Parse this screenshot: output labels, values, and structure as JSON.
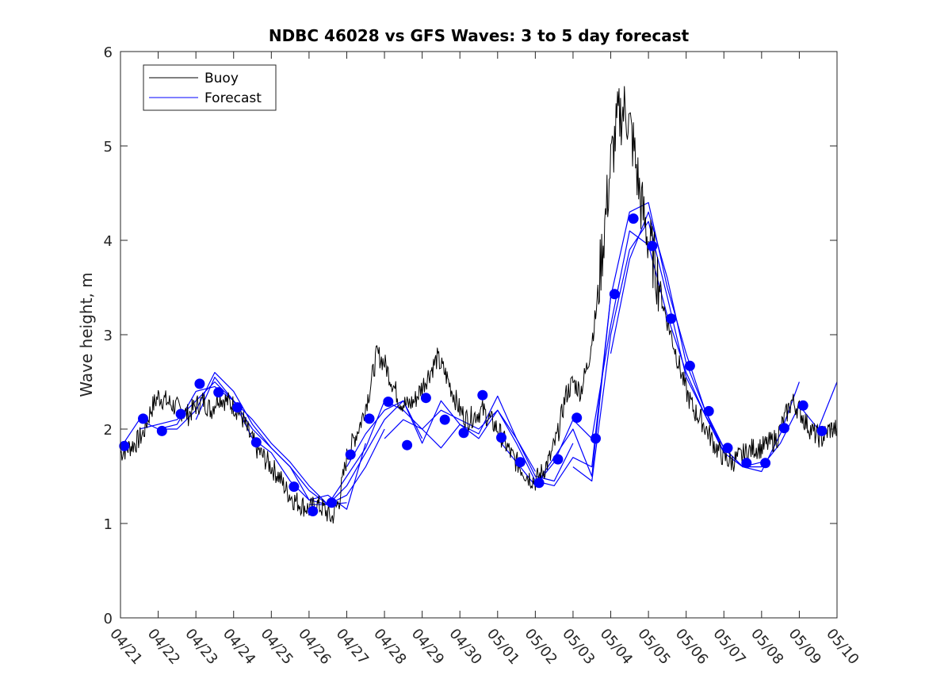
{
  "chart_data": {
    "type": "line",
    "title": "NDBC 46028 vs GFS Waves: 3 to 5 day forecast",
    "xlabel": "",
    "ylabel": "Wave height, m",
    "xlim": [
      0,
      19
    ],
    "ylim": [
      0,
      6
    ],
    "x_ticks": [
      {
        "day": 0,
        "label": "04/21"
      },
      {
        "day": 1,
        "label": "04/22"
      },
      {
        "day": 2,
        "label": "04/23"
      },
      {
        "day": 3,
        "label": "04/24"
      },
      {
        "day": 4,
        "label": "04/25"
      },
      {
        "day": 5,
        "label": "04/26"
      },
      {
        "day": 6,
        "label": "04/27"
      },
      {
        "day": 7,
        "label": "04/28"
      },
      {
        "day": 8,
        "label": "04/29"
      },
      {
        "day": 9,
        "label": "04/30"
      },
      {
        "day": 10,
        "label": "05/01"
      },
      {
        "day": 11,
        "label": "05/02"
      },
      {
        "day": 12,
        "label": "05/03"
      },
      {
        "day": 13,
        "label": "05/04"
      },
      {
        "day": 14,
        "label": "05/05"
      },
      {
        "day": 15,
        "label": "05/06"
      },
      {
        "day": 16,
        "label": "05/07"
      },
      {
        "day": 17,
        "label": "05/08"
      },
      {
        "day": 18,
        "label": "05/09"
      },
      {
        "day": 19,
        "label": "05/10"
      }
    ],
    "y_ticks": [
      0,
      1,
      2,
      3,
      4,
      5,
      6
    ],
    "legend": {
      "placement": "top-left",
      "entries": [
        {
          "label": "Buoy",
          "color": "#000000"
        },
        {
          "label": "Forecast",
          "color": "#0000ff"
        }
      ]
    },
    "colors": {
      "buoy": "#000000",
      "forecast": "#0000ff",
      "axis": "#262626"
    },
    "buoy": {
      "x": [
        0,
        0.2,
        0.4,
        0.6,
        0.8,
        1.0,
        1.2,
        1.4,
        1.6,
        1.8,
        2.0,
        2.2,
        2.4,
        2.6,
        2.8,
        3.0,
        3.2,
        3.4,
        3.6,
        3.8,
        4.0,
        4.2,
        4.4,
        4.6,
        4.8,
        5.0,
        5.2,
        5.4,
        5.6,
        5.8,
        6.0,
        6.2,
        6.4,
        6.6,
        6.8,
        7.0,
        7.2,
        7.4,
        7.6,
        7.8,
        8.0,
        8.2,
        8.4,
        8.6,
        8.8,
        9.0,
        9.2,
        9.4,
        9.6,
        9.8,
        10.0,
        10.2,
        10.4,
        10.6,
        10.8,
        11.0,
        11.2,
        11.4,
        11.6,
        11.8,
        12.0,
        12.2,
        12.4,
        12.6,
        12.8,
        13.0,
        13.2,
        13.4,
        13.6,
        13.8,
        14.0,
        14.2,
        14.4,
        14.6,
        14.8,
        15.0,
        15.2,
        15.4,
        15.6,
        15.8,
        16.0,
        16.2,
        16.4,
        16.6,
        16.8,
        17.0,
        17.2,
        17.4,
        17.6,
        17.8,
        18.0,
        18.2,
        18.4,
        18.6,
        18.8,
        19.0
      ],
      "y": [
        1.75,
        1.8,
        1.85,
        1.95,
        2.2,
        2.35,
        2.3,
        2.25,
        2.2,
        2.15,
        2.25,
        2.3,
        2.2,
        2.35,
        2.3,
        2.25,
        2.15,
        1.95,
        1.8,
        1.7,
        1.6,
        1.5,
        1.35,
        1.25,
        1.2,
        1.15,
        1.2,
        1.15,
        1.05,
        1.25,
        1.7,
        1.9,
        2.1,
        2.4,
        2.8,
        2.7,
        2.5,
        2.3,
        2.25,
        2.3,
        2.45,
        2.6,
        2.75,
        2.6,
        2.4,
        2.2,
        2.1,
        2.15,
        2.2,
        2.1,
        2.0,
        1.85,
        1.7,
        1.6,
        1.5,
        1.45,
        1.55,
        1.7,
        1.95,
        2.35,
        2.5,
        2.4,
        2.7,
        3.2,
        4.0,
        4.8,
        5.3,
        5.4,
        5.0,
        4.4,
        4.0,
        3.7,
        3.3,
        3.0,
        2.7,
        2.4,
        2.2,
        2.1,
        1.95,
        1.8,
        1.7,
        1.65,
        1.7,
        1.75,
        1.8,
        1.8,
        1.85,
        1.9,
        2.1,
        2.3,
        2.2,
        2.05,
        1.95,
        1.9,
        2.0,
        2.0
      ]
    },
    "forecast_runs": [
      {
        "x": [
          0,
          0.5,
          1,
          1.5,
          2,
          2.5,
          3,
          3.5,
          4,
          4.5,
          5,
          5.5,
          6
        ],
        "y": [
          1.8,
          2.1,
          2.0,
          2.05,
          2.4,
          2.45,
          2.3,
          2.1,
          1.85,
          1.65,
          1.4,
          1.2,
          1.22
        ]
      },
      {
        "x": [
          0.5,
          1,
          1.5,
          2,
          2.5,
          3,
          3.5,
          4,
          4.5,
          5,
          5.5,
          6,
          6.5
        ],
        "y": [
          2.0,
          2.05,
          2.1,
          2.3,
          2.5,
          2.3,
          2.0,
          1.8,
          1.6,
          1.25,
          1.3,
          1.15,
          1.85
        ]
      },
      {
        "x": [
          1,
          1.5,
          2,
          2.5,
          3,
          3.5,
          4,
          4.5,
          5,
          5.5,
          6,
          6.5,
          7
        ],
        "y": [
          2.0,
          2.0,
          2.2,
          2.6,
          2.4,
          2.05,
          1.8,
          1.6,
          1.35,
          1.2,
          1.3,
          1.6,
          2.0
        ]
      },
      {
        "x": [
          2,
          2.5,
          3,
          3.5,
          4,
          4.5,
          5,
          5.5,
          6,
          6.5,
          7,
          7.5,
          8
        ],
        "y": [
          2.1,
          2.55,
          2.3,
          1.9,
          1.75,
          1.45,
          1.25,
          1.2,
          1.4,
          1.75,
          2.1,
          2.3,
          1.9
        ]
      },
      {
        "x": [
          5,
          5.5,
          6,
          6.5,
          7,
          7.5,
          8,
          8.5,
          9,
          9.5,
          10,
          10.5,
          11
        ],
        "y": [
          1.2,
          1.2,
          1.5,
          1.8,
          2.3,
          2.2,
          2.0,
          2.2,
          2.1,
          2.0,
          2.2,
          1.9,
          1.55
        ]
      },
      {
        "x": [
          6,
          6.5,
          7,
          7.5,
          8,
          8.5,
          9,
          9.5,
          10,
          10.5,
          11,
          11.5,
          12
        ],
        "y": [
          1.6,
          1.95,
          2.2,
          2.3,
          1.85,
          2.3,
          2.05,
          1.95,
          2.35,
          1.9,
          1.5,
          1.45,
          1.85
        ]
      },
      {
        "x": [
          7,
          7.5,
          8,
          8.5,
          9,
          9.5,
          10,
          10.5,
          11,
          11.5,
          12,
          12.5,
          13
        ],
        "y": [
          1.9,
          2.1,
          2.0,
          1.8,
          2.05,
          1.9,
          2.2,
          1.85,
          1.45,
          1.4,
          1.7,
          1.6,
          3.4
        ]
      },
      {
        "x": [
          10,
          10.5,
          11,
          11.5,
          12,
          12.5,
          13,
          13.5,
          14,
          14.5,
          15,
          15.5,
          16
        ],
        "y": [
          1.9,
          1.65,
          1.4,
          1.7,
          2.0,
          1.5,
          3.4,
          4.3,
          4.4,
          3.5,
          2.8,
          2.2,
          1.75
        ]
      },
      {
        "x": [
          11,
          11.5,
          12,
          12.5,
          13,
          13.5,
          14,
          14.5,
          15,
          15.5,
          16,
          16.5,
          17
        ],
        "y": [
          1.4,
          1.65,
          2.1,
          1.9,
          3.1,
          4.1,
          3.95,
          3.2,
          2.6,
          2.15,
          1.8,
          1.6,
          1.65
        ]
      },
      {
        "x": [
          12,
          12.5,
          13,
          13.5,
          14,
          14.5,
          15,
          15.5,
          16,
          16.5,
          17,
          17.5,
          18
        ],
        "y": [
          1.6,
          1.45,
          3.0,
          3.9,
          4.2,
          3.4,
          2.55,
          2.15,
          1.75,
          1.6,
          1.55,
          1.95,
          2.5
        ]
      },
      {
        "x": [
          13,
          13.5,
          14,
          14.5,
          15,
          15.5,
          16,
          16.5,
          17,
          17.5,
          18,
          18.5,
          19
        ],
        "y": [
          2.8,
          3.8,
          4.3,
          3.6,
          2.7,
          2.2,
          1.8,
          1.6,
          1.6,
          1.85,
          2.25,
          2.0,
          2.5
        ]
      }
    ],
    "forecast_markers": {
      "x": [
        0.1,
        0.6,
        1.1,
        1.6,
        2.1,
        2.6,
        3.1,
        3.6,
        4.6,
        5.1,
        5.6,
        6.1,
        6.6,
        7.1,
        7.6,
        8.1,
        8.6,
        9.1,
        9.6,
        10.1,
        10.6,
        11.1,
        11.6,
        12.1,
        12.6,
        13.1,
        13.6,
        14.1,
        14.6,
        15.1,
        15.6,
        16.1,
        16.6,
        17.1,
        17.6,
        18.1,
        18.6
      ],
      "y": [
        1.82,
        2.11,
        1.98,
        2.16,
        2.48,
        2.39,
        2.23,
        1.86,
        1.39,
        1.13,
        1.22,
        1.73,
        2.11,
        2.29,
        1.83,
        2.33,
        2.1,
        1.96,
        2.36,
        1.91,
        1.65,
        1.43,
        1.68,
        2.12,
        1.9,
        3.43,
        4.23,
        3.94,
        3.17,
        2.67,
        2.19,
        1.8,
        1.64,
        1.64,
        2.01,
        2.25,
        1.98
      ]
    }
  }
}
